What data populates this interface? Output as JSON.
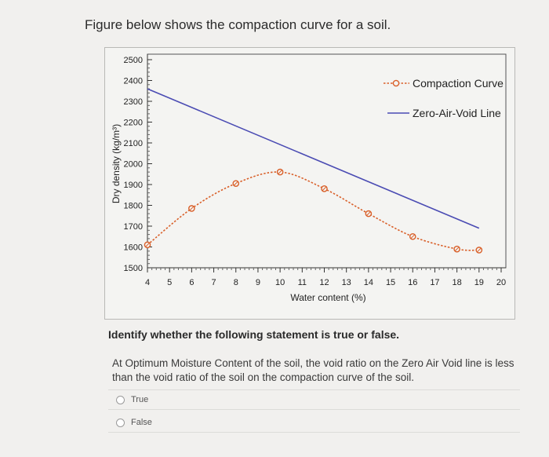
{
  "page": {
    "title": "Figure below shows the compaction curve for a soil.",
    "question": "Identify whether the following statement is true or false.",
    "statement": "At Optimum Moisture Content of the soil, the void ratio on the Zero Air Void line is less than the void ratio of the soil on the compaction curve of the soil.",
    "options": [
      "True",
      "False"
    ]
  },
  "colors": {
    "compaction": "#d9602a",
    "zav": "#4a4bb3",
    "axis": "#333333",
    "grid": "#666666"
  },
  "chart_data": {
    "type": "line",
    "xlabel": "Water content (%)",
    "ylabel": "Dry density (kg/m³)",
    "xlim": [
      4,
      20
    ],
    "ylim": [
      1500,
      2500
    ],
    "x_ticks": [
      4,
      5,
      6,
      7,
      8,
      9,
      10,
      11,
      12,
      13,
      14,
      15,
      16,
      17,
      18,
      19,
      20
    ],
    "y_ticks": [
      1500,
      1600,
      1700,
      1800,
      1900,
      2000,
      2100,
      2200,
      2300,
      2400,
      2500
    ],
    "legend_position": "top-right",
    "series": [
      {
        "name": "Compaction Curve",
        "style": "dashed-with-circle-markers",
        "x": [
          4,
          6,
          8,
          10,
          12,
          14,
          16,
          18,
          19
        ],
        "y": [
          1610,
          1785,
          1905,
          1960,
          1880,
          1760,
          1650,
          1590,
          1585
        ]
      },
      {
        "name": "Zero-Air-Void Line",
        "style": "solid",
        "x": [
          4,
          19
        ],
        "y": [
          2360,
          1690
        ]
      }
    ]
  }
}
